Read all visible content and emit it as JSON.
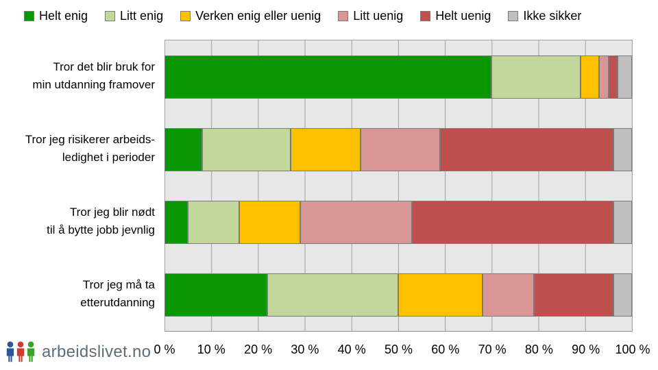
{
  "legend": [
    {
      "label": "Helt enig",
      "color": "#089700"
    },
    {
      "label": "Litt enig",
      "color": "#C3D69B"
    },
    {
      "label": "Verken enig eller uenig",
      "color": "#FFC000"
    },
    {
      "label": "Litt uenig",
      "color": "#D99694"
    },
    {
      "label": "Helt uenig",
      "color": "#C0504D"
    },
    {
      "label": "Ikke sikker",
      "color": "#BFBFBF"
    }
  ],
  "chart_data": {
    "type": "bar",
    "orientation": "horizontal",
    "stacked": true,
    "title": "",
    "xlabel": "",
    "ylabel": "",
    "xlim": [
      0,
      100
    ],
    "grid": "vertical",
    "legend_position": "top",
    "categories": [
      "Tror det blir bruk for min utdanning framover",
      "Tror jeg risikerer arbeidsledighet i perioder",
      "Tror jeg blir nødt til å bytte jobb jevnlig",
      "Tror jeg må ta etterutdanning"
    ],
    "category_label_lines": [
      [
        "Tror det blir bruk for",
        "min utdanning framover"
      ],
      [
        "Tror jeg risikerer arbeids-",
        "ledighet i perioder"
      ],
      [
        "Tror jeg blir nødt",
        "til å bytte jobb jevnlig"
      ],
      [
        "Tror jeg må ta",
        "etterutdanning"
      ]
    ],
    "series": [
      {
        "name": "Helt enig",
        "color": "#089700",
        "values": [
          70,
          8,
          5,
          22
        ]
      },
      {
        "name": "Litt enig",
        "color": "#C3D69B",
        "values": [
          19,
          19,
          11,
          28
        ]
      },
      {
        "name": "Verken enig eller uenig",
        "color": "#FFC000",
        "values": [
          4,
          15,
          13,
          18
        ]
      },
      {
        "name": "Litt uenig",
        "color": "#D99694",
        "values": [
          2,
          17,
          24,
          11
        ]
      },
      {
        "name": "Helt uenig",
        "color": "#C0504D",
        "values": [
          2,
          37,
          43,
          17
        ]
      },
      {
        "name": "Ikke sikker",
        "color": "#BFBFBF",
        "values": [
          3,
          4,
          4,
          4
        ]
      }
    ],
    "x_ticks": [
      "0 %",
      "10 %",
      "20 %",
      "30 %",
      "40 %",
      "50 %",
      "60 %",
      "70 %",
      "80 %",
      "90 %",
      "100 %"
    ]
  },
  "logo": {
    "text": "arbeidslivet.no",
    "text_color": "#5E6D7A",
    "icon_colors": [
      "#2B579A",
      "#D03B33",
      "#3BA226"
    ]
  }
}
